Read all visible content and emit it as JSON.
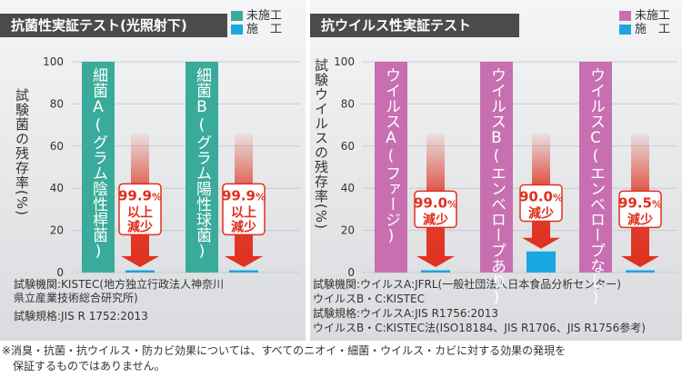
{
  "colors": {
    "untreated_left": "#3aab9a",
    "untreated_right": "#c76fb0",
    "treated": "#1aa7e0",
    "arrow": "#e0301e",
    "title_bg": "#4b4b4b"
  },
  "panels": [
    {
      "title": "抗菌性実証テスト(光照射下)",
      "legend": [
        "未施工",
        "施　工"
      ],
      "ylabel": "試験菌の残存率(%)",
      "footer": [
        "試験機関:KISTEC(地方独立行政法人神奈川",
        "県立産業技術総合研究所)",
        "試験規格:JIS R 1752:2013"
      ]
    },
    {
      "title": "抗ウイルス性実証テスト",
      "legend": [
        "未施工",
        "施　工"
      ],
      "ylabel": "試験ウイルスの残存率(%)",
      "footer": [
        "試験機関:ウイルスA:JFRL(一般社団法人日本食品分析センター)",
        "ウイルスB・C:KISTEC",
        "試験規格:ウイルスA:JIS R1756:2013",
        "ウイルスB・C:KISTEC法(ISO18184、JIS R1706、JIS R1756参考)"
      ]
    }
  ],
  "footnote": [
    "※消臭・抗菌・抗ウイルス・防カビ効果については、すべてのニオイ・細菌・ウイルス・カビに対する効果の発現を",
    "保証するものではありません。"
  ],
  "chart_data": [
    {
      "type": "bar",
      "ylim": [
        0,
        100
      ],
      "yticks": [
        0,
        20,
        40,
        60,
        80,
        100
      ],
      "categories": [
        "細菌A(グラム陰性桿菌)",
        "細菌B(グラム陽性球菌)"
      ],
      "series": [
        {
          "name": "未施工",
          "values": [
            100,
            100
          ]
        },
        {
          "name": "施　工",
          "values": [
            0.1,
            0.1
          ]
        }
      ],
      "annotations": [
        {
          "value": "99.9",
          "unit": "%",
          "lines": [
            "以上",
            "減少"
          ]
        },
        {
          "value": "99.9",
          "unit": "%",
          "lines": [
            "以上",
            "減少"
          ]
        }
      ]
    },
    {
      "type": "bar",
      "ylim": [
        0,
        100
      ],
      "yticks": [
        0,
        20,
        40,
        60,
        80,
        100
      ],
      "categories": [
        "ウイルスA(ファージ)",
        "ウイルスB(エンベロープあり)",
        "ウイルスC(エンベロープなし)"
      ],
      "series": [
        {
          "name": "未施工",
          "values": [
            100,
            100,
            100
          ]
        },
        {
          "name": "施　工",
          "values": [
            1.0,
            10.0,
            0.5
          ]
        }
      ],
      "annotations": [
        {
          "value": "99.0",
          "unit": "%",
          "lines": [
            "減少"
          ]
        },
        {
          "value": "90.0",
          "unit": "%",
          "lines": [
            "減少"
          ]
        },
        {
          "value": "99.5",
          "unit": "%",
          "lines": [
            "減少"
          ]
        }
      ]
    }
  ]
}
